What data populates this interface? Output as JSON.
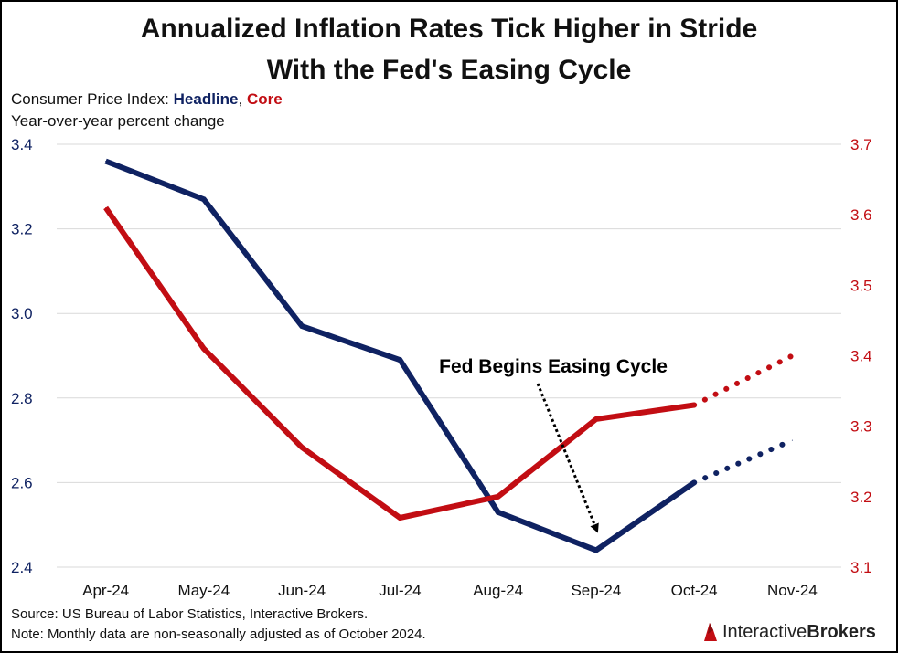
{
  "header": {
    "title_line1": "Annualized Inflation Rates Tick Higher in Stride",
    "title_line2": "With the Fed's Easing Cycle",
    "subtitle_prefix": "Consumer Price Index: ",
    "subtitle_headline": "Headline",
    "subtitle_separator": ", ",
    "subtitle_core": "Core",
    "subtitle_line2": "Year-over-year percent change"
  },
  "footer": {
    "source": "Source: US Bureau of Labor Statistics, Interactive Brokers.",
    "note": "Note: Monthly data are non-seasonally adjusted as of October 2024.",
    "logo_part1": "Interactive",
    "logo_part2": "Brokers"
  },
  "colors": {
    "headline": "#0f2262",
    "core": "#c20d13",
    "grid": "#d9d9d9",
    "annotation": "#000000"
  },
  "chart_data": {
    "type": "line",
    "categories": [
      "Apr-24",
      "May-24",
      "Jun-24",
      "Jul-24",
      "Aug-24",
      "Sep-24",
      "Oct-24",
      "Nov-24"
    ],
    "left_axis": {
      "min": 2.4,
      "max": 3.4,
      "ticks": [
        "2.4",
        "2.6",
        "2.8",
        "3.0",
        "3.2",
        "3.4"
      ]
    },
    "right_axis": {
      "min": 3.1,
      "max": 3.7,
      "ticks": [
        "3.1",
        "3.2",
        "3.3",
        "3.4",
        "3.5",
        "3.6",
        "3.7"
      ]
    },
    "series": [
      {
        "name": "Headline",
        "axis": "left",
        "values": [
          3.36,
          3.27,
          2.97,
          2.89,
          2.53,
          2.44,
          2.6,
          2.7
        ],
        "projected_from_index": 6
      },
      {
        "name": "Core",
        "axis": "right",
        "values": [
          3.61,
          3.41,
          3.27,
          3.17,
          3.2,
          3.31,
          3.33,
          3.4
        ],
        "projected_from_index": 6
      }
    ],
    "annotation": {
      "text": "Fed Begins Easing Cycle",
      "points_to": "Sep-24"
    },
    "grid": "horizontal"
  }
}
